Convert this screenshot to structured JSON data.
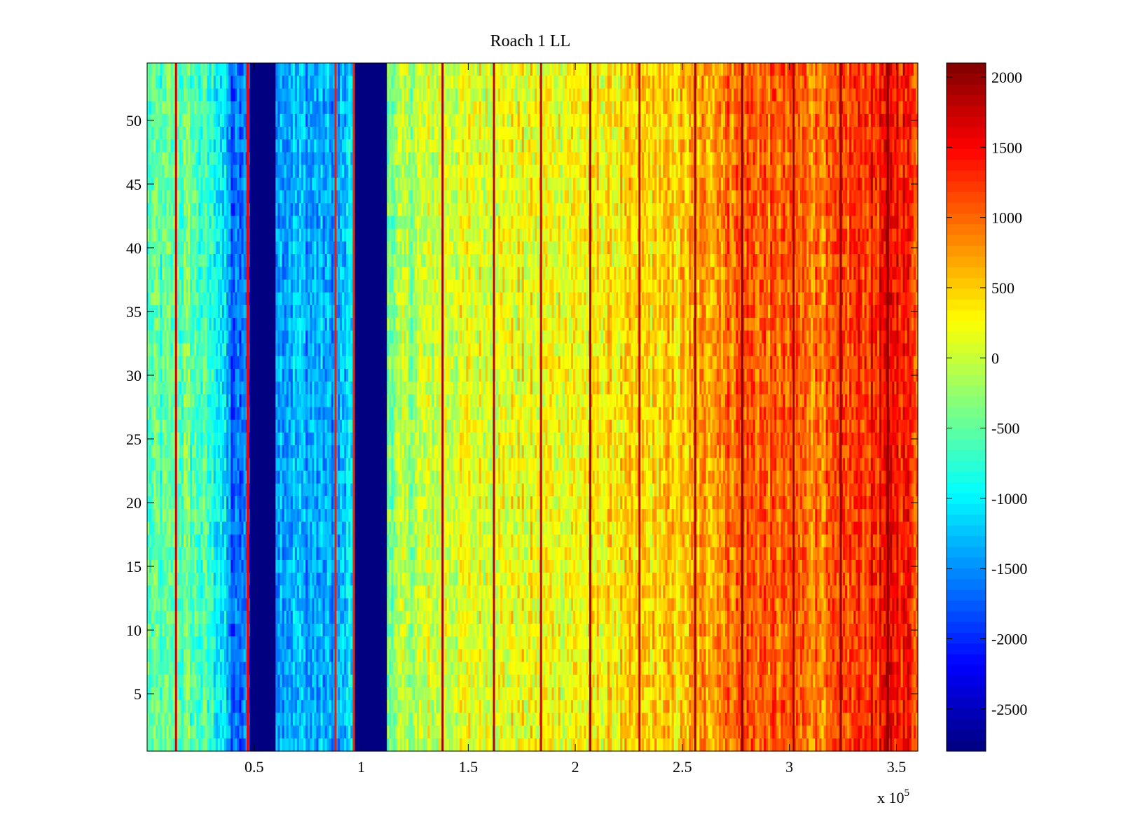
{
  "chart_data": {
    "type": "heatmap",
    "title": "Roach 1 LL",
    "xlabel": "",
    "ylabel": "",
    "x_exponent_label": "x 10",
    "x_exponent_power": "5",
    "xlim": [
      0,
      3.6
    ],
    "ylim": [
      0.5,
      54.5
    ],
    "x_ticks": [
      0.5,
      1,
      1.5,
      2,
      2.5,
      3,
      3.5
    ],
    "x_tick_labels": [
      "0.5",
      "1",
      "1.5",
      "2",
      "2.5",
      "3",
      "3.5"
    ],
    "y_ticks": [
      5,
      10,
      15,
      20,
      25,
      30,
      35,
      40,
      45,
      50
    ],
    "y_tick_labels": [
      "5",
      "10",
      "15",
      "20",
      "25",
      "30",
      "35",
      "40",
      "45",
      "50"
    ],
    "colorbar": {
      "clim": [
        -2800,
        2100
      ],
      "ticks": [
        2000,
        1500,
        1000,
        500,
        0,
        -500,
        -1000,
        -1500,
        -2000,
        -2500
      ],
      "tick_labels": [
        "2000",
        "1500",
        "1000",
        "500",
        "0",
        "-500",
        "-1000",
        "-1500",
        "-2000",
        "-2500"
      ],
      "colormap": "jet"
    },
    "rows": 54,
    "columns": 360,
    "trend": [
      {
        "x": 0.0,
        "value": -600
      },
      {
        "x": 0.2,
        "value": -500
      },
      {
        "x": 0.34,
        "value": -900
      },
      {
        "x": 0.4,
        "value": -1800
      },
      {
        "x": 0.6,
        "value": -1300
      },
      {
        "x": 0.9,
        "value": -1400
      },
      {
        "x": 1.13,
        "value": -300
      },
      {
        "x": 1.4,
        "value": 100
      },
      {
        "x": 2.0,
        "value": 250
      },
      {
        "x": 2.5,
        "value": 500
      },
      {
        "x": 2.78,
        "value": 1100
      },
      {
        "x": 3.0,
        "value": 1000
      },
      {
        "x": 3.2,
        "value": 950
      },
      {
        "x": 3.35,
        "value": 1300
      },
      {
        "x": 3.5,
        "value": 1500
      },
      {
        "x": 3.6,
        "value": 1200
      }
    ],
    "saturated_bands": [
      {
        "x_start": 0.485,
        "x_end": 0.605,
        "value": -2800
      },
      {
        "x_start": 0.975,
        "x_end": 1.115,
        "value": -2800
      }
    ],
    "spike_lines": [
      {
        "x": 0.135,
        "value": 1700
      },
      {
        "x": 0.47,
        "value": 1500
      },
      {
        "x": 0.88,
        "value": 1400
      },
      {
        "x": 0.965,
        "value": 1300
      },
      {
        "x": 1.38,
        "value": 1900
      },
      {
        "x": 1.62,
        "value": 1800
      },
      {
        "x": 1.84,
        "value": 1700
      },
      {
        "x": 2.07,
        "value": 1900
      },
      {
        "x": 2.3,
        "value": 1700
      },
      {
        "x": 2.56,
        "value": 1900
      },
      {
        "x": 2.78,
        "value": 2000
      },
      {
        "x": 3.02,
        "value": 1900
      },
      {
        "x": 3.24,
        "value": 2000
      },
      {
        "x": 3.46,
        "value": 2000
      }
    ]
  }
}
